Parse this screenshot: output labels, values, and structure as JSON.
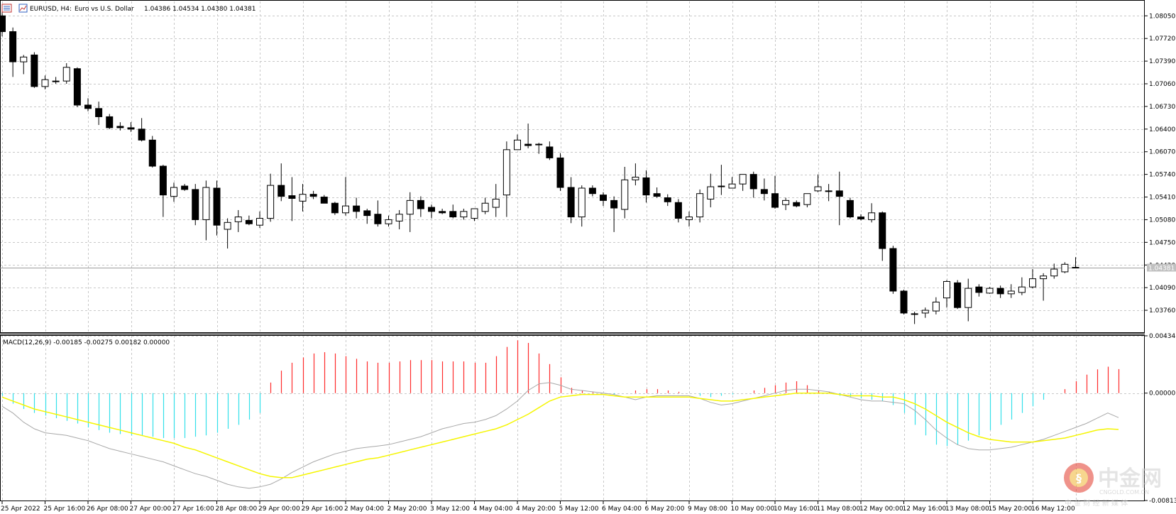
{
  "main_header": {
    "symbol": "EURUSD, H4:",
    "description": "Euro vs U.S. Dollar",
    "ohlc": "1.04386 1.04534 1.04380 1.04381"
  },
  "macd_header": "MACD(12,26,9) -0.00185 -0.00275 0.00182 0.00000",
  "current_price_label": "1.04381",
  "watermark": {
    "brand": "中金网",
    "url": "CNGOLD.COM.CN",
    "tagline": "中 金 财 经 新 媒 体"
  },
  "colors": {
    "bull_body": "#ffffff",
    "bear_body": "#000000",
    "hist_up": "#ff2a2a",
    "hist_down": "#33e0ea",
    "macd_line": "#a8a8a8",
    "signal_line": "#f5f500",
    "grid": "#c8c8c8",
    "brand_red": "#e23a2c"
  },
  "chart_data": [
    {
      "type": "candlestick",
      "title": "EURUSD, H4",
      "ylim": [
        1.0344,
        1.0826
      ],
      "y_ticks": [
        "1.08050",
        "1.07720",
        "1.07390",
        "1.07060",
        "1.06730",
        "1.06400",
        "1.06070",
        "1.05740",
        "1.05410",
        "1.05080",
        "1.04750",
        "1.04420",
        "1.04090",
        "1.03760"
      ],
      "x_ticks": [
        "25 Apr 2022",
        "25 Apr 16:00",
        "26 Apr 08:00",
        "27 Apr 00:00",
        "27 Apr 16:00",
        "28 Apr 08:00",
        "29 Apr 00:00",
        "29 Apr 16:00",
        "2 May 04:00",
        "2 May 20:00",
        "3 May 12:00",
        "4 May 04:00",
        "4 May 20:00",
        "5 May 12:00",
        "6 May 04:00",
        "6 May 20:00",
        "9 May 08:00",
        "10 May 00:00",
        "10 May 16:00",
        "11 May 08:00",
        "12 May 00:00",
        "12 May 16:00",
        "13 May 08:00",
        "15 May 20:00",
        "16 May 12:00"
      ],
      "last_price": 1.04381,
      "ohlc": [
        [
          1.0805,
          1.0812,
          1.0775,
          1.0782
        ],
        [
          1.0782,
          1.0788,
          1.0716,
          1.0738
        ],
        [
          1.0738,
          1.0748,
          1.072,
          1.0745
        ],
        [
          1.0748,
          1.0752,
          1.07,
          1.0702
        ],
        [
          1.0702,
          1.0718,
          1.0698,
          1.0712
        ],
        [
          1.071,
          1.0716,
          1.0706,
          1.071
        ],
        [
          1.071,
          1.0736,
          1.0706,
          1.073
        ],
        [
          1.0728,
          1.073,
          1.0672,
          1.0675
        ],
        [
          1.0675,
          1.0685,
          1.0666,
          1.067
        ],
        [
          1.067,
          1.068,
          1.0646,
          1.0658
        ],
        [
          1.0658,
          1.0662,
          1.064,
          1.0642
        ],
        [
          1.0644,
          1.065,
          1.0638,
          1.0642
        ],
        [
          1.0642,
          1.065,
          1.0636,
          1.064
        ],
        [
          1.064,
          1.0656,
          1.0622,
          1.0624
        ],
        [
          1.0624,
          1.063,
          1.0584,
          1.0586
        ],
        [
          1.0586,
          1.0588,
          1.0512,
          1.0544
        ],
        [
          1.0542,
          1.0562,
          1.0534,
          1.0555
        ],
        [
          1.0557,
          1.056,
          1.055,
          1.0552
        ],
        [
          1.0552,
          1.056,
          1.05,
          1.0508
        ],
        [
          1.0508,
          1.0565,
          1.0478,
          1.0555
        ],
        [
          1.0554,
          1.0565,
          1.0485,
          1.05
        ],
        [
          1.0494,
          1.051,
          1.0466,
          1.0504
        ],
        [
          1.0505,
          1.0522,
          1.049,
          1.0512
        ],
        [
          1.0507,
          1.0514,
          1.05,
          1.0502
        ],
        [
          1.05,
          1.052,
          1.0496,
          1.051
        ],
        [
          1.051,
          1.0575,
          1.0505,
          1.0558
        ],
        [
          1.0558,
          1.059,
          1.0535,
          1.0542
        ],
        [
          1.0543,
          1.057,
          1.0506,
          1.0539
        ],
        [
          1.0535,
          1.056,
          1.052,
          1.0545
        ],
        [
          1.0545,
          1.055,
          1.0538,
          1.0542
        ],
        [
          1.0541,
          1.0544,
          1.0532,
          1.0532
        ],
        [
          1.0532,
          1.0534,
          1.0515,
          1.0518
        ],
        [
          1.0518,
          1.057,
          1.0514,
          1.0528
        ],
        [
          1.0528,
          1.054,
          1.051,
          1.052
        ],
        [
          1.0521,
          1.0524,
          1.0502,
          1.0514
        ],
        [
          1.0516,
          1.0536,
          1.0498,
          1.0502
        ],
        [
          1.0502,
          1.0514,
          1.0498,
          1.0508
        ],
        [
          1.0506,
          1.0522,
          1.0494,
          1.0516
        ],
        [
          1.0516,
          1.0548,
          1.049,
          1.0536
        ],
        [
          1.0536,
          1.0542,
          1.0512,
          1.0524
        ],
        [
          1.0526,
          1.053,
          1.051,
          1.052
        ],
        [
          1.052,
          1.0524,
          1.0516,
          1.0518
        ],
        [
          1.052,
          1.053,
          1.051,
          1.0512
        ],
        [
          1.0512,
          1.0524,
          1.0508,
          1.052
        ],
        [
          1.051,
          1.0524,
          1.0506,
          1.0524
        ],
        [
          1.052,
          1.054,
          1.0516,
          1.0532
        ],
        [
          1.0526,
          1.056,
          1.0512,
          1.0538
        ],
        [
          1.0544,
          1.0622,
          1.0512,
          1.061
        ],
        [
          1.061,
          1.0632,
          1.061,
          1.0624
        ],
        [
          1.0618,
          1.0648,
          1.0612,
          1.0616
        ],
        [
          1.0617,
          1.062,
          1.0604,
          1.0618
        ],
        [
          1.0614,
          1.0622,
          1.0595,
          1.0598
        ],
        [
          1.0598,
          1.0605,
          1.055,
          1.0555
        ],
        [
          1.0555,
          1.057,
          1.0503,
          1.0512
        ],
        [
          1.0512,
          1.0558,
          1.0498,
          1.0554
        ],
        [
          1.0554,
          1.0558,
          1.0542,
          1.0546
        ],
        [
          1.0544,
          1.0548,
          1.0528,
          1.0536
        ],
        [
          1.0536,
          1.0542,
          1.049,
          1.0525
        ],
        [
          1.0523,
          1.0585,
          1.051,
          1.0566
        ],
        [
          1.0566,
          1.059,
          1.0558,
          1.057
        ],
        [
          1.0569,
          1.058,
          1.0533,
          1.0544
        ],
        [
          1.0546,
          1.0555,
          1.054,
          1.0542
        ],
        [
          1.054,
          1.0545,
          1.0528,
          1.0534
        ],
        [
          1.0533,
          1.0538,
          1.0504,
          1.051
        ],
        [
          1.0508,
          1.052,
          1.0498,
          1.0512
        ],
        [
          1.0512,
          1.0552,
          1.0504,
          1.0546
        ],
        [
          1.0538,
          1.0575,
          1.0526,
          1.0556
        ],
        [
          1.0557,
          1.0588,
          1.0544,
          1.0556
        ],
        [
          1.0554,
          1.057,
          1.0554,
          1.056
        ],
        [
          1.056,
          1.0574,
          1.055,
          1.0574
        ],
        [
          1.0574,
          1.0578,
          1.054,
          1.0553
        ],
        [
          1.0552,
          1.0568,
          1.0536,
          1.0546
        ],
        [
          1.0546,
          1.0572,
          1.0524,
          1.0526
        ],
        [
          1.053,
          1.054,
          1.0522,
          1.0536
        ],
        [
          1.0533,
          1.0536,
          1.0526,
          1.0528
        ],
        [
          1.053,
          1.0542,
          1.0526,
          1.0546
        ],
        [
          1.055,
          1.0574,
          1.0548,
          1.0556
        ],
        [
          1.055,
          1.056,
          1.0535,
          1.055
        ],
        [
          1.055,
          1.0578,
          1.05,
          1.0542
        ],
        [
          1.0536,
          1.054,
          1.051,
          1.0512
        ],
        [
          1.0512,
          1.0516,
          1.0507,
          1.0509
        ],
        [
          1.0508,
          1.0532,
          1.0504,
          1.0518
        ],
        [
          1.0518,
          1.052,
          1.0448,
          1.0466
        ],
        [
          1.0466,
          1.047,
          1.04,
          1.0404
        ],
        [
          1.0404,
          1.0406,
          1.037,
          1.0372
        ],
        [
          1.0371,
          1.0374,
          1.0356,
          1.037
        ],
        [
          1.0372,
          1.038,
          1.0365,
          1.0376
        ],
        [
          1.0375,
          1.0395,
          1.037,
          1.0388
        ],
        [
          1.0394,
          1.042,
          1.038,
          1.0418
        ],
        [
          1.0416,
          1.042,
          1.0378,
          1.038
        ],
        [
          1.038,
          1.0422,
          1.036,
          1.0408
        ],
        [
          1.041,
          1.0414,
          1.0396,
          1.0402
        ],
        [
          1.0401,
          1.041,
          1.04,
          1.0408
        ],
        [
          1.0408,
          1.0412,
          1.0394,
          1.04
        ],
        [
          1.04,
          1.0414,
          1.0394,
          1.0404
        ],
        [
          1.0402,
          1.0424,
          1.0398,
          1.041
        ],
        [
          1.041,
          1.0436,
          1.0408,
          1.0422
        ],
        [
          1.0422,
          1.043,
          1.039,
          1.0426
        ],
        [
          1.0426,
          1.0444,
          1.0422,
          1.0436
        ],
        [
          1.0432,
          1.0446,
          1.043,
          1.0443
        ],
        [
          1.04386,
          1.04534,
          1.0438,
          1.04381
        ]
      ]
    },
    {
      "type": "macd",
      "title": "MACD(12,26,9)",
      "ylim": [
        -0.00813,
        0.00434
      ],
      "y_ticks": [
        "0.00434",
        "0.00000",
        "-0.00813"
      ],
      "histogram": [
        -0.0002,
        -0.0008,
        -0.0012,
        -0.0015,
        -0.0017,
        -0.0019,
        -0.0021,
        -0.0023,
        -0.0026,
        -0.0028,
        -0.003,
        -0.0031,
        -0.0032,
        -0.0032,
        -0.0033,
        -0.0034,
        -0.0034,
        -0.0034,
        -0.0033,
        -0.0032,
        -0.003,
        -0.0027,
        -0.0024,
        -0.002,
        -0.0015,
        0.0008,
        0.0017,
        0.0023,
        0.0027,
        0.003,
        0.0031,
        0.003,
        0.0028,
        0.0026,
        0.0024,
        0.0023,
        0.0023,
        0.0024,
        0.0025,
        0.0025,
        0.0025,
        0.0024,
        0.0024,
        0.0024,
        0.0023,
        0.0023,
        0.0028,
        0.0035,
        0.004,
        0.0038,
        0.003,
        0.0022,
        0.0012,
        0.0004,
        0.0002,
        0.0001,
        0.0,
        -0.0001,
        0.0,
        0.0002,
        0.0003,
        0.0003,
        0.0002,
        0.0001,
        0.0,
        -0.0002,
        -0.0003,
        -0.0002,
        -0.0001,
        0.0,
        0.0002,
        0.0004,
        0.0006,
        0.0008,
        0.0009,
        0.0006,
        0.0002,
        0.0001,
        -0.0002,
        -0.0003,
        -0.0004,
        -0.0005,
        -0.0006,
        -0.0009,
        -0.0015,
        -0.0024,
        -0.0032,
        -0.0039,
        -0.004,
        -0.0039,
        -0.0036,
        -0.0032,
        -0.0028,
        -0.0024,
        -0.002,
        -0.0015,
        -0.001,
        -0.0005,
        0.0,
        0.0003,
        0.0009,
        0.0014,
        0.0018,
        0.002,
        0.00182
      ],
      "macd": [
        -0.001,
        -0.0015,
        -0.0022,
        -0.0027,
        -0.003,
        -0.0031,
        -0.0032,
        -0.0034,
        -0.0036,
        -0.0039,
        -0.0042,
        -0.0044,
        -0.0046,
        -0.0048,
        -0.005,
        -0.0052,
        -0.0055,
        -0.0058,
        -0.0061,
        -0.0063,
        -0.0066,
        -0.0069,
        -0.0071,
        -0.0072,
        -0.0071,
        -0.0069,
        -0.0065,
        -0.006,
        -0.0056,
        -0.0052,
        -0.0049,
        -0.0046,
        -0.0044,
        -0.0042,
        -0.0041,
        -0.004,
        -0.0039,
        -0.0037,
        -0.0035,
        -0.0033,
        -0.003,
        -0.0027,
        -0.0025,
        -0.0023,
        -0.0022,
        -0.002,
        -0.0017,
        -0.0012,
        -0.0006,
        0.0002,
        0.0007,
        0.0008,
        0.0006,
        0.0003,
        0.0002,
        0.0001,
        0.0,
        -0.0001,
        -0.0003,
        -0.0005,
        -0.0003,
        -0.0002,
        -0.0002,
        -0.0002,
        -0.0002,
        -0.0004,
        -0.0007,
        -0.0009,
        -0.0008,
        -0.0006,
        -0.0004,
        -0.0002,
        0.0,
        0.0002,
        0.0003,
        0.0003,
        0.0002,
        0.0001,
        -0.0001,
        -0.0003,
        -0.0005,
        -0.0006,
        -0.0006,
        -0.0007,
        -0.0008,
        -0.0013,
        -0.002,
        -0.0028,
        -0.0034,
        -0.0039,
        -0.0042,
        -0.0043,
        -0.0043,
        -0.0042,
        -0.0041,
        -0.0039,
        -0.0037,
        -0.0035,
        -0.0032,
        -0.0029,
        -0.0026,
        -0.0023,
        -0.0019,
        -0.0015,
        -0.00185
      ],
      "signal": [
        -0.0003,
        -0.0006,
        -0.0009,
        -0.0012,
        -0.0014,
        -0.0016,
        -0.0018,
        -0.002,
        -0.0022,
        -0.0024,
        -0.0026,
        -0.0028,
        -0.003,
        -0.0032,
        -0.0034,
        -0.0036,
        -0.0038,
        -0.0041,
        -0.0043,
        -0.0046,
        -0.0049,
        -0.0052,
        -0.0055,
        -0.0058,
        -0.0061,
        -0.0063,
        -0.0064,
        -0.0064,
        -0.0062,
        -0.006,
        -0.0058,
        -0.0056,
        -0.0054,
        -0.0052,
        -0.005,
        -0.0049,
        -0.0047,
        -0.0045,
        -0.0043,
        -0.0041,
        -0.0039,
        -0.0037,
        -0.0035,
        -0.0033,
        -0.0031,
        -0.0029,
        -0.0027,
        -0.0024,
        -0.002,
        -0.0016,
        -0.0011,
        -0.0006,
        -0.0003,
        -0.0002,
        -0.0001,
        -0.0001,
        -0.0001,
        -0.0002,
        -0.0003,
        -0.0003,
        -0.0003,
        -0.0003,
        -0.0003,
        -0.0003,
        -0.0003,
        -0.0004,
        -0.0005,
        -0.0006,
        -0.0006,
        -0.0005,
        -0.0004,
        -0.0003,
        -0.0002,
        -0.0001,
        0.0,
        0.0,
        0.0,
        0.0,
        -0.0001,
        -0.0002,
        -0.0002,
        -0.0002,
        -0.0003,
        -0.0003,
        -0.0005,
        -0.0008,
        -0.0012,
        -0.0017,
        -0.0022,
        -0.0026,
        -0.003,
        -0.0033,
        -0.0035,
        -0.0036,
        -0.0037,
        -0.0037,
        -0.0037,
        -0.0036,
        -0.0035,
        -0.0034,
        -0.0032,
        -0.003,
        -0.0028,
        -0.0027,
        -0.00275
      ]
    }
  ]
}
